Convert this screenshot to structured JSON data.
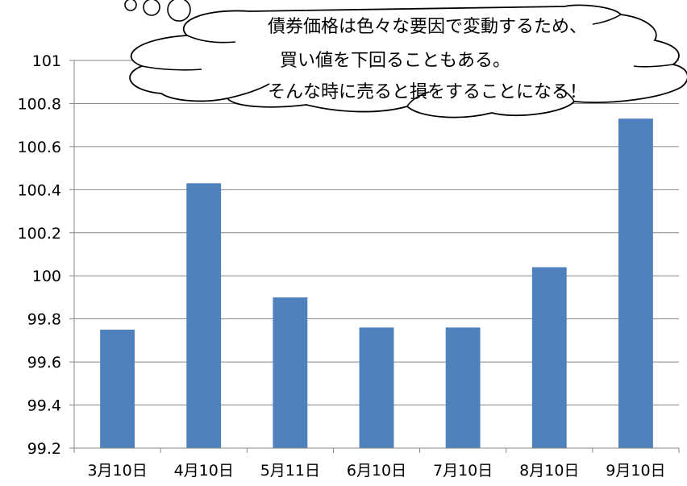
{
  "annotation": {
    "lines": [
      "債券価格は色々な要因で変動するため、",
      "買い値を下回ることもある。",
      "そんな時に売ると損をすることになる！"
    ]
  },
  "chart_data": {
    "type": "bar",
    "title": "",
    "xlabel": "",
    "ylabel": "",
    "categories": [
      "3月10日",
      "4月10日",
      "5月11日",
      "6月10日",
      "7月10日",
      "8月10日",
      "9月10日"
    ],
    "values": [
      99.75,
      100.43,
      99.9,
      99.76,
      99.76,
      100.04,
      100.73
    ],
    "ylim": [
      99.2,
      101
    ],
    "yticks": [
      99.2,
      99.4,
      99.6,
      99.8,
      100,
      100.2,
      100.4,
      100.6,
      100.8,
      101
    ],
    "ytick_labels": [
      "99.2",
      "99.4",
      "99.6",
      "99.8",
      "100",
      "100.2",
      "100.4",
      "100.6",
      "100.8",
      "101"
    ],
    "grid": true,
    "legend": "none",
    "bar_color": "#4F81BD"
  }
}
